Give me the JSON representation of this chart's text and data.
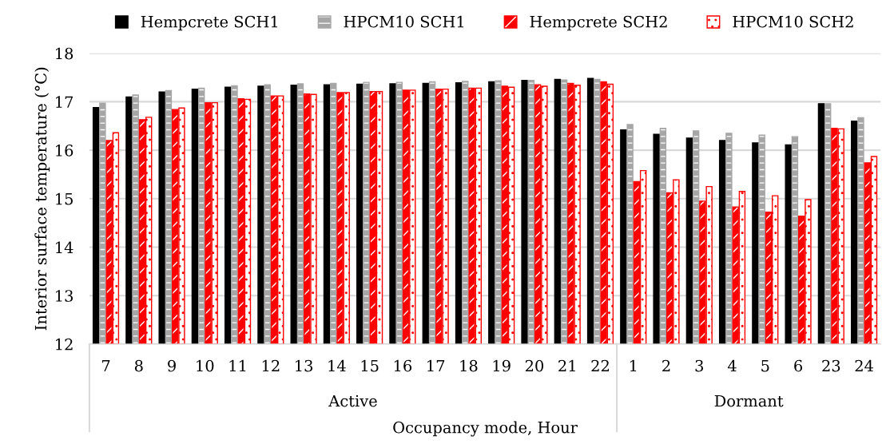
{
  "chart_data": {
    "type": "bar",
    "xlabel": "Occupancy mode, Hour",
    "ylabel": "Interior surface temperature (°C)",
    "categories": [
      "7",
      "8",
      "9",
      "10",
      "11",
      "12",
      "13",
      "14",
      "15",
      "16",
      "17",
      "18",
      "19",
      "20",
      "21",
      "22",
      "1",
      "2",
      "3",
      "4",
      "5",
      "6",
      "23",
      "24"
    ],
    "series": [
      {
        "name": "Hempcrete SCH1",
        "color": "#000000",
        "values": [
          16.88,
          17.1,
          17.2,
          17.26,
          17.3,
          17.32,
          17.34,
          17.35,
          17.36,
          17.37,
          17.38,
          17.39,
          17.41,
          17.44,
          17.46,
          17.48,
          16.42,
          16.33,
          16.25,
          16.2,
          16.15,
          16.11,
          16.96,
          16.6
        ]
      },
      {
        "name": "HPCM10 SCH1",
        "color": "#a6a6a6",
        "values": [
          16.97,
          17.14,
          17.23,
          17.28,
          17.33,
          17.35,
          17.37,
          17.38,
          17.4,
          17.4,
          17.41,
          17.42,
          17.43,
          17.44,
          17.45,
          17.46,
          16.53,
          16.45,
          16.4,
          16.35,
          16.31,
          16.28,
          16.96,
          16.67
        ]
      },
      {
        "name": "Hempcrete SCH2",
        "color": "#ff0000",
        "values": [
          16.2,
          16.63,
          16.84,
          16.98,
          17.06,
          17.12,
          17.16,
          17.19,
          17.21,
          17.24,
          17.26,
          17.28,
          17.32,
          17.35,
          17.38,
          17.41,
          15.35,
          15.12,
          14.95,
          14.83,
          14.72,
          14.64,
          16.45,
          15.74
        ]
      },
      {
        "name": "HPCM10 SCH2",
        "color": "#ff0000",
        "values": [
          16.36,
          16.68,
          16.87,
          16.98,
          17.05,
          17.12,
          17.15,
          17.19,
          17.21,
          17.24,
          17.26,
          17.28,
          17.3,
          17.32,
          17.34,
          17.36,
          15.58,
          15.39,
          15.25,
          15.15,
          15.06,
          14.98,
          16.44,
          15.87
        ]
      }
    ],
    "ylim": [
      12,
      18
    ],
    "yticks": [
      12,
      13,
      14,
      15,
      16,
      17,
      18
    ],
    "grid": "y",
    "legend": "top",
    "annotations": [
      "Active",
      "Dormant"
    ]
  }
}
